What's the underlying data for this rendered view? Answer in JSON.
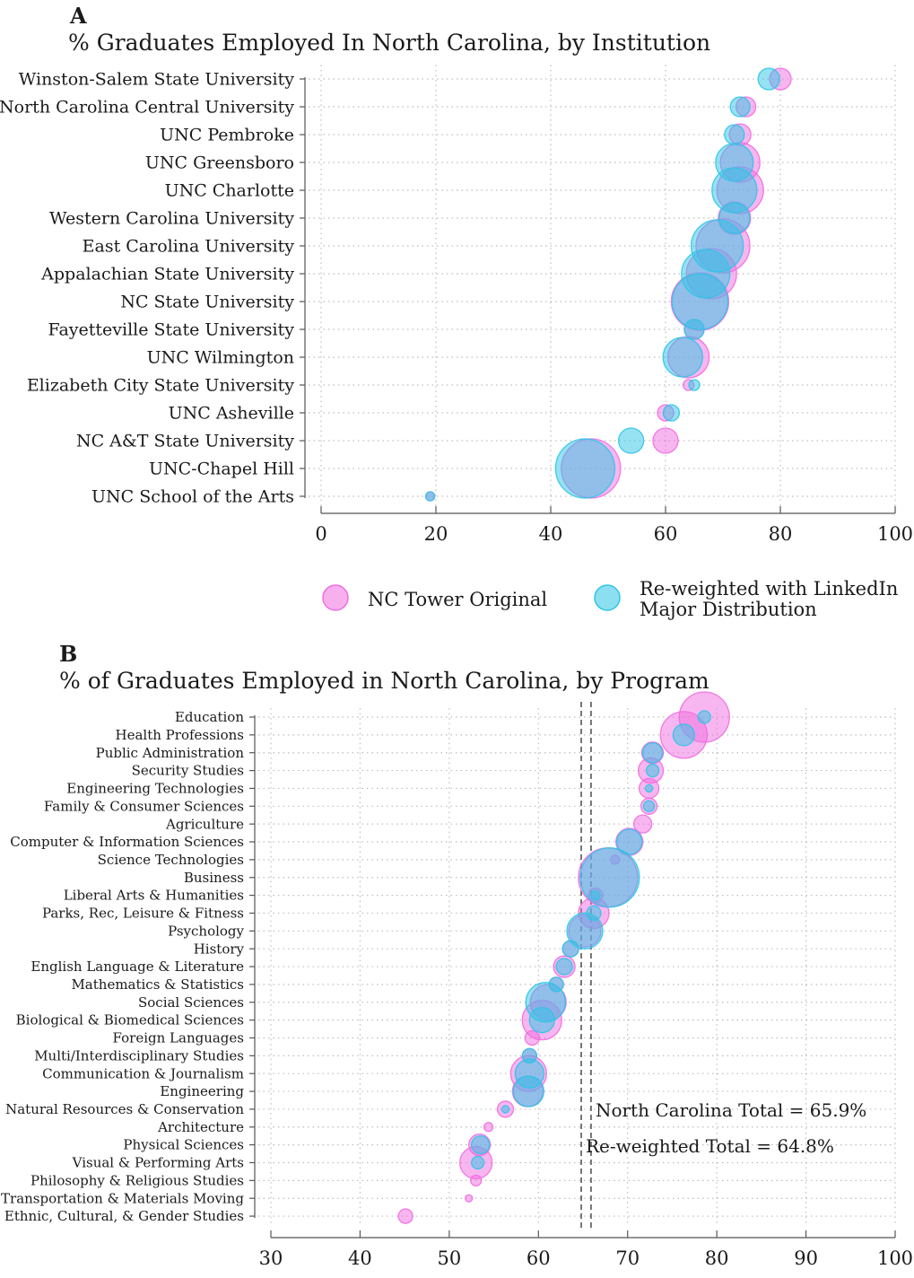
{
  "colors": {
    "original": "#f06ee0",
    "reweighted": "#2ec5e6",
    "overlap": "#5b87d6",
    "refline": "#555555"
  },
  "chart_data": [
    {
      "panel": "A",
      "type": "scatter",
      "title": "% Graduates Employed In North Carolina, by Institution",
      "xlim": [
        0,
        100
      ],
      "xticks": [
        0,
        20,
        40,
        60,
        80,
        100
      ],
      "grid": true,
      "categories": [
        "Winston-Salem State University",
        "North Carolina Central University",
        "UNC Pembroke",
        "UNC Greensboro",
        "UNC Charlotte",
        "Western Carolina University",
        "East Carolina University",
        "Appalachian State University",
        "NC State University",
        "Fayetteville State University",
        "UNC Wilmington",
        "Elizabeth City State University",
        "UNC Asheville",
        "NC A&T State University",
        "UNC-Chapel Hill",
        "UNC School of the Arts"
      ],
      "series": [
        {
          "name": "NC Tower Original",
          "values": [
            80,
            74,
            73,
            73,
            73,
            72,
            70,
            68,
            66,
            65,
            64,
            64,
            60,
            60,
            47,
            19
          ],
          "sizes": [
            12,
            11,
            12,
            22,
            26,
            18,
            30,
            28,
            32,
            11,
            23,
            6,
            9,
            14,
            33,
            5
          ]
        },
        {
          "name": "Re-weighted with LinkedIn Major Distribution",
          "values": [
            78,
            73,
            72,
            72,
            72,
            72,
            69,
            67,
            66,
            65,
            63,
            65,
            61,
            54,
            46,
            19
          ],
          "sizes": [
            12,
            11,
            11,
            21,
            25,
            17,
            29,
            27,
            31,
            11,
            22,
            6,
            9,
            14,
            33,
            5
          ]
        }
      ],
      "legend": {
        "placement": "bottom",
        "items": [
          "NC Tower Original",
          "Re-weighted with LinkedIn",
          "Major Distribution"
        ]
      }
    },
    {
      "panel": "B",
      "type": "scatter",
      "title": "% of Graduates Employed in North Carolina, by Program",
      "xlim": [
        30,
        100
      ],
      "xticks": [
        30,
        40,
        50,
        60,
        70,
        80,
        90,
        100
      ],
      "grid": true,
      "categories": [
        "Education",
        "Health Professions",
        "Public Administration",
        "Security Studies",
        "Engineering Technologies",
        "Family & Consumer Sciences",
        "Agriculture",
        "Computer & Information Sciences",
        "Science Technologies",
        "Business",
        "Liberal Arts & Humanities",
        "Parks, Rec, Leisure & Fitness",
        "Psychology",
        "History",
        "English Language & Literature",
        "Mathematics & Statistics",
        "Social Sciences",
        "Biological & Biomedical Sciences",
        "Foreign Languages",
        "Multi/Interdisciplinary Studies",
        "Communication & Journalism",
        "Engineering",
        "Natural Resources & Conservation",
        "Architecture",
        "Physical Sciences",
        "Visual & Performing Arts",
        "Philosophy & Religious Studies",
        "Transportation & Materials Moving",
        "Ethnic, Cultural, & Gender Studies"
      ],
      "series": [
        {
          "name": "NC Tower Original",
          "values": [
            78.6,
            76.3,
            72.8,
            72.6,
            72.4,
            72.4,
            71.7,
            70.2,
            68.6,
            67.8,
            66.4,
            66.2,
            65.2,
            63.6,
            62.9,
            62.0,
            61.1,
            60.4,
            59.3,
            59.0,
            58.9,
            58.8,
            56.3,
            54.4,
            53.4,
            53.0,
            53.0,
            52.2,
            45.1
          ],
          "sizes": [
            28,
            26,
            12,
            14,
            11,
            9,
            10,
            15,
            5,
            33,
            8,
            17,
            18,
            9,
            12,
            8,
            20,
            22,
            8,
            8,
            20,
            17,
            9,
            5,
            12,
            18,
            6,
            4,
            8
          ]
        },
        {
          "name": "Re-weighted with LinkedIn Major Distribution",
          "values": [
            78.6,
            76.3,
            72.8,
            72.8,
            72.4,
            72.4,
            71.7,
            70.2,
            68.6,
            68.0,
            66.4,
            66.2,
            65.2,
            63.6,
            62.9,
            62.0,
            60.8,
            60.4,
            59.3,
            59.0,
            59.0,
            58.9,
            56.3,
            54.4,
            53.5,
            53.2,
            53.0,
            52.2,
            45.1
          ],
          "sizes": [
            7,
            12,
            11,
            7,
            4,
            6,
            0,
            14,
            0,
            33,
            5,
            8,
            20,
            9,
            9,
            8,
            22,
            14,
            0,
            8,
            16,
            17,
            4,
            0,
            10,
            7,
            0,
            0,
            0
          ]
        }
      ],
      "reference_lines": [
        {
          "label": "North Carolina Total = 65.9%",
          "value": 65.9
        },
        {
          "label": "Re-weighted Total = 64.8%",
          "value": 64.8
        }
      ]
    }
  ]
}
